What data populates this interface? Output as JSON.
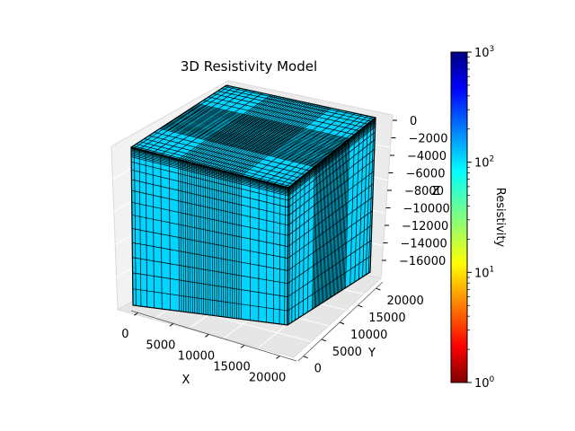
{
  "chart_data": {
    "type": "3d-voxel-mesh",
    "title": "3D Resistivity Model",
    "xlabel": "X",
    "ylabel": "Y",
    "zlabel": "Z",
    "x_ticks": [
      "0",
      "5000",
      "10000",
      "15000",
      "20000"
    ],
    "y_ticks": [
      "0",
      "5000",
      "10000",
      "15000",
      "20000"
    ],
    "z_ticks": [
      "0",
      "−2000",
      "−4000",
      "−6000",
      "−8000",
      "−10000",
      "−12000",
      "−14000",
      "−16000"
    ],
    "colorbar": {
      "label": "Resistivity",
      "scale": "log",
      "colormap": "jet",
      "range": [
        1,
        1000
      ],
      "ticks": [
        {
          "base": "10",
          "exp": "0"
        },
        {
          "base": "10",
          "exp": "1"
        },
        {
          "base": "10",
          "exp": "2"
        },
        {
          "base": "10",
          "exp": "3"
        }
      ]
    },
    "model_value": 200,
    "model_color": "#00d4ff",
    "edge_color": "#000000"
  }
}
